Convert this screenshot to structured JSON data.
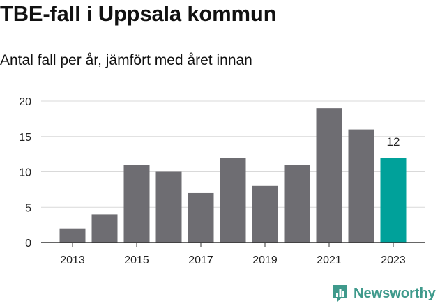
{
  "title": "TBE-fall i Uppsala kommun",
  "subtitle": "Antal fall per år, jämfört med året innan",
  "brand": {
    "name": "Newsworthy",
    "icon": "newsworthy-logo-icon",
    "color": "#3f9a8c"
  },
  "colors": {
    "bar": "#6e6d72",
    "highlight": "#00a19a",
    "grid": "#d9d9d9",
    "axis": "#333333"
  },
  "chart_data": {
    "type": "bar",
    "categories": [
      "2013",
      "2014",
      "2015",
      "2016",
      "2017",
      "2018",
      "2019",
      "2020",
      "2021",
      "2022",
      "2023"
    ],
    "values": [
      2,
      4,
      11,
      10,
      7,
      12,
      8,
      11,
      19,
      16,
      12
    ],
    "highlight_index": 10,
    "data_labels": [
      {
        "index": 10,
        "text": "12"
      }
    ],
    "x_tick_labels": [
      "2013",
      "2015",
      "2017",
      "2019",
      "2021",
      "2023"
    ],
    "y_ticks": [
      0,
      5,
      10,
      15,
      20
    ],
    "ylim": [
      0,
      20
    ],
    "grid": true,
    "title": "TBE-fall i Uppsala kommun",
    "subtitle": "Antal fall per år, jämfört med året innan",
    "xlabel": "",
    "ylabel": ""
  }
}
